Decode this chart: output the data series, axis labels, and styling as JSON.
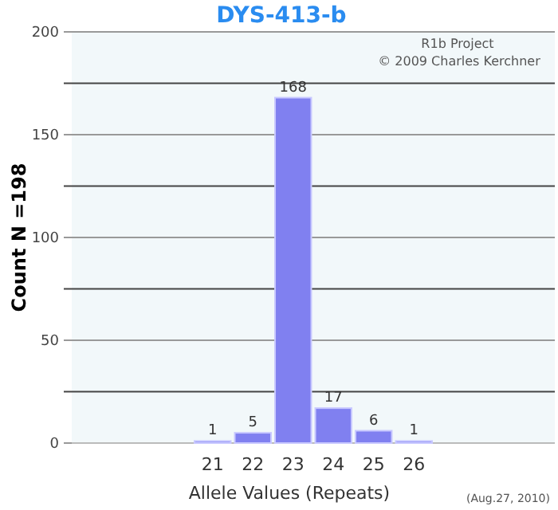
{
  "chart_data": {
    "type": "bar",
    "title": "DYS-413-b",
    "xlabel": "Allele Values (Repeats)",
    "ylabel": "Count N =198",
    "annotations": [
      "R1b Project",
      "© 2009 Charles Kerchner",
      "(Aug.27, 2010)"
    ],
    "categories": [
      null,
      null,
      null,
      "21",
      "22",
      "23",
      "24",
      "25",
      "26",
      null,
      null,
      null
    ],
    "values": [
      null,
      null,
      null,
      1,
      5,
      168,
      17,
      6,
      1,
      null,
      null,
      null
    ],
    "color": "#8080f0",
    "data_labels": true,
    "ylim": [
      0,
      200
    ],
    "yticks": [
      0,
      {
        "value": 25,
        "label": null
      },
      50,
      {
        "value": 75,
        "label": null
      },
      100,
      {
        "value": 125,
        "label": null
      },
      150,
      {
        "value": 175,
        "label": null
      },
      200
    ],
    "grid": "y"
  }
}
